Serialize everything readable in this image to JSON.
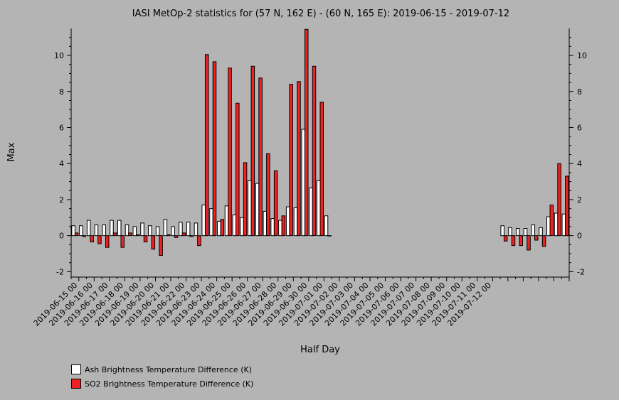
{
  "chart_data": {
    "type": "bar",
    "title": "IASI MetOp-2 statistics for (57 N, 162 E) - (60 N, 165 E): 2019-06-15 - 2019-07-12",
    "xlabel": "Half Day",
    "ylabel": "Max",
    "ylim": [
      -2.3,
      11.5
    ],
    "yticks": [
      -2,
      0,
      2,
      4,
      6,
      8,
      10
    ],
    "grid": false,
    "legend_position": "bottom-left",
    "tick_labels": [
      "2019-06-15 00",
      "2019-06-16 00",
      "2019-06-17 00",
      "2019-06-18 00",
      "2019-06-19 00",
      "2019-06-20 00",
      "2019-06-21 00",
      "2019-06-22 00",
      "2019-06-23 00",
      "2019-06-24 00",
      "2019-06-25 00",
      "2019-06-26 00",
      "2019-06-27 00",
      "2019-06-28 00",
      "2019-06-29 00",
      "2019-06-30 00",
      "2019-07-01 00",
      "2019-07-02 00",
      "2019-07-03 00",
      "2019-07-04 00",
      "2019-07-05 00",
      "2019-07-06 00",
      "2019-07-07 00",
      "2019-07-08 00",
      "2019-07-09 00",
      "2019-07-10 00",
      "2019-07-11 00",
      "2019-07-12 00"
    ],
    "series": [
      {
        "name": "Ash Brightness Temperature Difference (K)",
        "color": "#ffffff",
        "values": [
          0.55,
          0.55,
          0.85,
          0.6,
          0.6,
          0.85,
          0.85,
          0.6,
          0.5,
          0.7,
          0.55,
          0.5,
          0.9,
          0.5,
          0.75,
          0.75,
          0.7,
          1.7,
          1.5,
          0.8,
          1.65,
          1.15,
          1.0,
          3.05,
          2.9,
          1.35,
          0.95,
          0.85,
          1.6,
          1.55,
          5.9,
          2.65,
          3.05,
          1.1,
          null,
          null,
          null,
          null,
          null,
          null,
          null,
          null,
          null,
          null,
          null,
          null,
          null,
          null,
          null,
          null,
          null,
          null,
          null,
          null,
          null,
          null,
          0.55,
          0.45,
          0.4,
          0.4,
          0.6,
          0.45,
          1.05,
          1.25,
          1.2
        ]
      },
      {
        "name": "SO2 Brightness Temperature Difference (K)",
        "color": "#ee2222",
        "values": [
          0.15,
          -0.05,
          -0.35,
          -0.45,
          -0.65,
          0.15,
          -0.65,
          0.15,
          0.05,
          -0.35,
          -0.75,
          -1.1,
          0.05,
          -0.1,
          0.15,
          -0.05,
          -0.55,
          10.05,
          9.65,
          0.9,
          9.3,
          7.35,
          4.05,
          9.4,
          8.75,
          4.55,
          3.6,
          1.1,
          8.4,
          8.55,
          11.45,
          9.4,
          7.4,
          0.0,
          null,
          null,
          null,
          null,
          null,
          null,
          null,
          null,
          null,
          null,
          null,
          null,
          null,
          null,
          null,
          null,
          null,
          null,
          null,
          null,
          null,
          null,
          -0.3,
          -0.55,
          -0.55,
          -0.8,
          -0.25,
          -0.6,
          1.7,
          4.0,
          3.3
        ]
      }
    ]
  }
}
